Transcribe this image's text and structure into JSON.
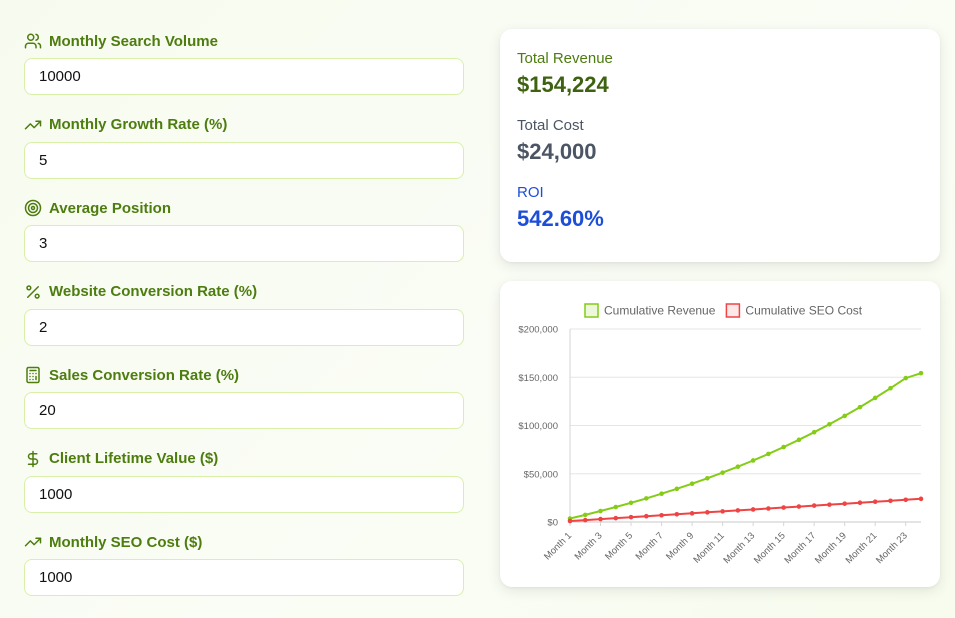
{
  "fields": [
    {
      "label": "Monthly Search Volume",
      "value": "10000",
      "icon": "users-icon"
    },
    {
      "label": "Monthly Growth Rate (%)",
      "value": "5",
      "icon": "trending-up-icon"
    },
    {
      "label": "Average Position",
      "value": "3",
      "icon": "target-icon"
    },
    {
      "label": "Website Conversion Rate (%)",
      "value": "2",
      "icon": "percent-icon"
    },
    {
      "label": "Sales Conversion Rate (%)",
      "value": "20",
      "icon": "calculator-icon"
    },
    {
      "label": "Client Lifetime Value ($)",
      "value": "1000",
      "icon": "dollar-icon"
    },
    {
      "label": "Monthly SEO Cost ($)",
      "value": "1000",
      "icon": "trending-up-icon"
    }
  ],
  "results": {
    "revenue_label": "Total Revenue",
    "revenue_value": "$154,224",
    "cost_label": "Total Cost",
    "cost_value": "$24,000",
    "roi_label": "ROI",
    "roi_value": "542.60%"
  },
  "colors": {
    "accent": "#4d7c0f",
    "revenue_value": "#3f6212",
    "cost": "#4b5563",
    "roi": "#1d4ed8",
    "revenue_line": "#84cc16",
    "cost_line": "#ef4444"
  },
  "chart_data": {
    "type": "line",
    "x": [
      "Month 1",
      "Month 2",
      "Month 3",
      "Month 4",
      "Month 5",
      "Month 6",
      "Month 7",
      "Month 8",
      "Month 9",
      "Month 10",
      "Month 11",
      "Month 12",
      "Month 13",
      "Month 14",
      "Month 15",
      "Month 16",
      "Month 17",
      "Month 18",
      "Month 19",
      "Month 20",
      "Month 21",
      "Month 22",
      "Month 23",
      "Month 24"
    ],
    "x_tick_labels": [
      "Month 1",
      "Month 3",
      "Month 5",
      "Month 7",
      "Month 9",
      "Month 11",
      "Month 13",
      "Month 15",
      "Month 17",
      "Month 19",
      "Month 21",
      "Month 23"
    ],
    "series": [
      {
        "name": "Cumulative Revenue",
        "values": [
          3600,
          7380,
          11349,
          15516,
          19892,
          24487,
          29311,
          34377,
          39695,
          45280,
          51144,
          57301,
          63766,
          70554,
          77682,
          85166,
          93025,
          101276,
          109940,
          119037,
          128589,
          138619,
          149150,
          154224
        ]
      },
      {
        "name": "Cumulative SEO Cost",
        "values": [
          1000,
          2000,
          3000,
          4000,
          5000,
          6000,
          7000,
          8000,
          9000,
          10000,
          11000,
          12000,
          13000,
          14000,
          15000,
          16000,
          17000,
          18000,
          19000,
          20000,
          21000,
          22000,
          23000,
          24000
        ]
      }
    ],
    "y_ticks": [
      "$0",
      "$50,000",
      "$100,000",
      "$150,000",
      "$200,000"
    ],
    "ylim": [
      0,
      200000
    ],
    "grid": true,
    "legend": "top"
  }
}
